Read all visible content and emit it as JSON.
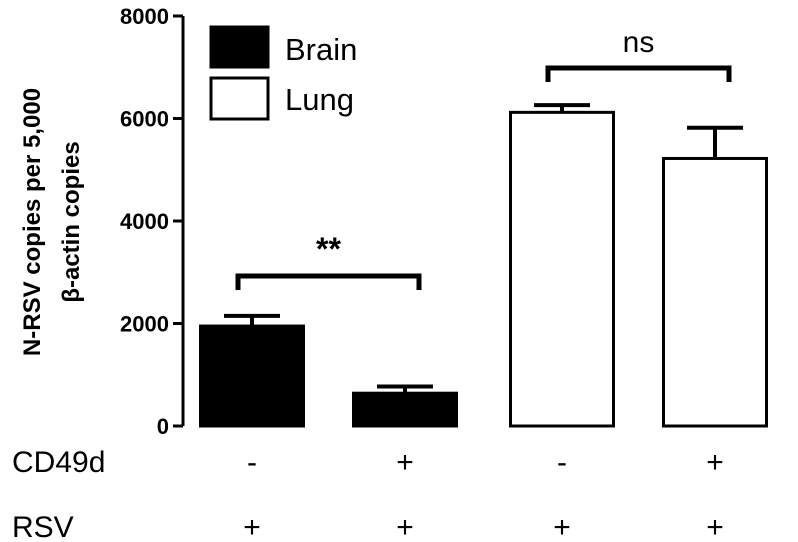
{
  "chart_data": {
    "type": "bar",
    "ylabel": [
      "N-RSV copies per 5,000",
      "β-actin copies"
    ],
    "ylim": [
      0,
      8000
    ],
    "yticks": [
      0,
      2000,
      4000,
      6000,
      8000
    ],
    "legend": {
      "position": "top-left",
      "entries": [
        {
          "label": "Brain",
          "fill": "#000000"
        },
        {
          "label": "Lung",
          "fill": "#ffffff"
        }
      ]
    },
    "groups": [
      {
        "tissue": "Brain",
        "bars": [
          {
            "CD49d": "-",
            "RSV": "+",
            "value": 1950,
            "error": 200
          },
          {
            "CD49d": "+",
            "RSV": "+",
            "value": 640,
            "error": 130
          }
        ],
        "significance": "**"
      },
      {
        "tissue": "Lung",
        "bars": [
          {
            "CD49d": "-",
            "RSV": "+",
            "value": 6120,
            "error": 140
          },
          {
            "CD49d": "+",
            "RSV": "+",
            "value": 5220,
            "error": 600
          }
        ],
        "significance": "ns"
      }
    ],
    "row_labels": [
      "CD49d",
      "RSV"
    ],
    "colors": {
      "Brain": "#000000",
      "Lung": "#ffffff",
      "stroke": "#000000"
    }
  }
}
